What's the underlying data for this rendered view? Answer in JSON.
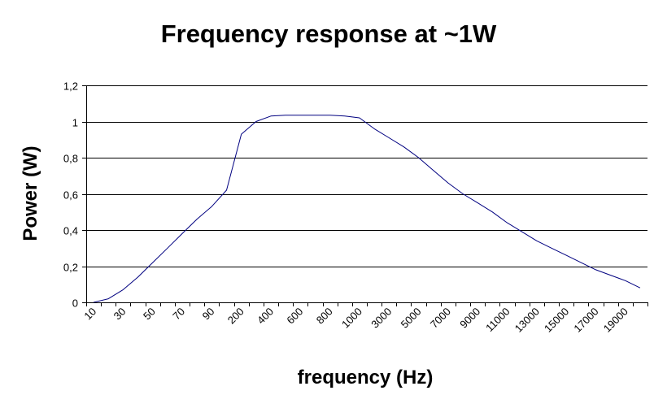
{
  "chart_data": {
    "type": "line",
    "title": "Frequency response at ~1W",
    "xlabel": "frequency (Hz)",
    "ylabel": "Power (W)",
    "ylim": [
      0,
      1.2
    ],
    "y_ticks": [
      "0",
      "0,2",
      "0,4",
      "0,6",
      "0,8",
      "1",
      "1,2"
    ],
    "y_tick_values": [
      0,
      0.2,
      0.4,
      0.6,
      0.8,
      1.0,
      1.2
    ],
    "grid": "horizontal",
    "legend": "none",
    "x_tick_labels": [
      "10",
      "30",
      "50",
      "70",
      "90",
      "200",
      "400",
      "600",
      "800",
      "1000",
      "3000",
      "5000",
      "7000",
      "9000",
      "11000",
      "13000",
      "15000",
      "17000",
      "19000"
    ],
    "x": [
      "10",
      "20",
      "30",
      "40",
      "50",
      "60",
      "70",
      "80",
      "90",
      "100",
      "200",
      "300",
      "400",
      "500",
      "600",
      "700",
      "800",
      "900",
      "1000",
      "2000",
      "3000",
      "4000",
      "5000",
      "6000",
      "7000",
      "8000",
      "9000",
      "10000",
      "11000",
      "12000",
      "13000",
      "14000",
      "15000",
      "16000",
      "17000",
      "18000",
      "19000",
      "20000"
    ],
    "series": [
      {
        "color": "#000080",
        "values": [
          0.0,
          0.02,
          0.07,
          0.14,
          0.22,
          0.3,
          0.38,
          0.46,
          0.53,
          0.62,
          0.93,
          1.0,
          1.03,
          1.035,
          1.035,
          1.035,
          1.035,
          1.03,
          1.02,
          0.96,
          0.91,
          0.86,
          0.8,
          0.73,
          0.66,
          0.6,
          0.55,
          0.5,
          0.44,
          0.39,
          0.34,
          0.3,
          0.26,
          0.22,
          0.18,
          0.15,
          0.12,
          0.08
        ]
      }
    ]
  }
}
